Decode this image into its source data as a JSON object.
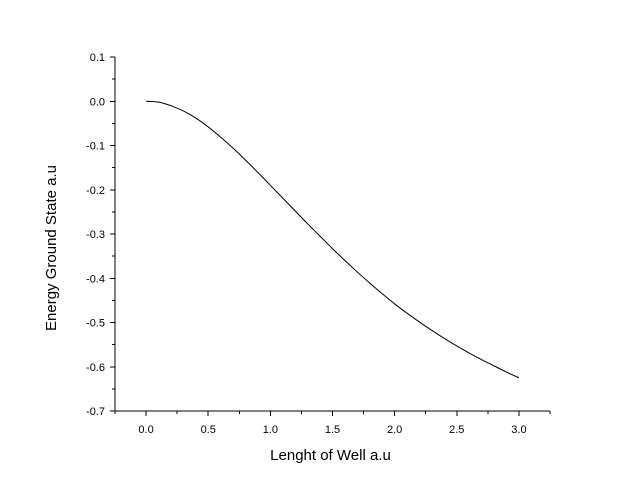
{
  "chart_data": {
    "type": "line",
    "title": "",
    "xlabel": "Lenght of Well a.u",
    "ylabel": "Energy Ground State a.u",
    "xlim": [
      -0.25,
      3.25
    ],
    "ylim": [
      -0.7,
      0.1
    ],
    "xticks": [
      0.0,
      0.5,
      1.0,
      1.5,
      2.0,
      2.5,
      3.0
    ],
    "xtick_labels": [
      "0.0",
      "0.5",
      "1.0",
      "1.5",
      "2.0",
      "2.5",
      "3.0"
    ],
    "yticks": [
      0.1,
      0.0,
      -0.1,
      -0.2,
      -0.3,
      -0.4,
      -0.5,
      -0.6,
      -0.7
    ],
    "ytick_labels": [
      "0.1",
      "0.0",
      "-0.1",
      "-0.2",
      "-0.3",
      "-0.4",
      "-0.5",
      "-0.6",
      "-0.7"
    ],
    "grid": false,
    "series": [
      {
        "color": "#000000",
        "x": [
          0.0,
          0.1,
          0.2,
          0.3,
          0.4,
          0.5,
          0.6,
          0.7,
          0.8,
          0.9,
          1.0,
          1.1,
          1.2,
          1.3,
          1.4,
          1.5,
          1.6,
          1.7,
          1.8,
          1.9,
          2.0,
          2.1,
          2.2,
          2.3,
          2.4,
          2.5,
          2.6,
          2.7,
          2.8,
          2.9,
          3.0
        ],
        "y": [
          0.0,
          -0.002,
          -0.01,
          -0.022,
          -0.038,
          -0.058,
          -0.081,
          -0.106,
          -0.133,
          -0.161,
          -0.19,
          -0.219,
          -0.248,
          -0.277,
          -0.305,
          -0.333,
          -0.36,
          -0.386,
          -0.411,
          -0.435,
          -0.458,
          -0.479,
          -0.499,
          -0.518,
          -0.536,
          -0.553,
          -0.569,
          -0.584,
          -0.598,
          -0.612,
          -0.625
        ]
      }
    ]
  }
}
